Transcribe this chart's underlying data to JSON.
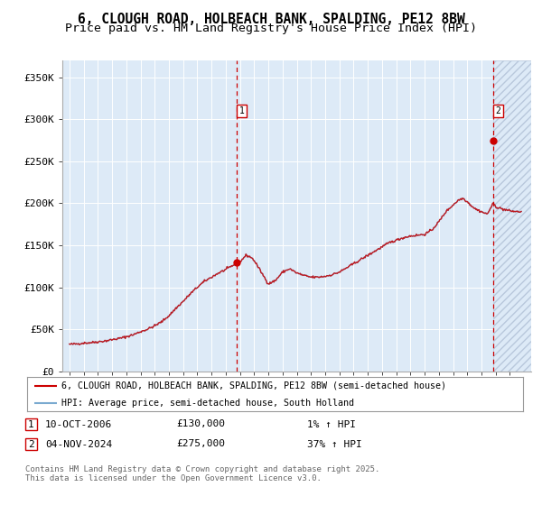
{
  "title_line1": "6, CLOUGH ROAD, HOLBEACH BANK, SPALDING, PE12 8BW",
  "title_line2": "Price paid vs. HM Land Registry's House Price Index (HPI)",
  "legend_line1": "6, CLOUGH ROAD, HOLBEACH BANK, SPALDING, PE12 8BW (semi-detached house)",
  "legend_line2": "HPI: Average price, semi-detached house, South Holland",
  "annotation1_date": "10-OCT-2006",
  "annotation1_price": "£130,000",
  "annotation1_hpi": "1% ↑ HPI",
  "annotation2_date": "04-NOV-2024",
  "annotation2_price": "£275,000",
  "annotation2_hpi": "37% ↑ HPI",
  "footer": "Contains HM Land Registry data © Crown copyright and database right 2025.\nThis data is licensed under the Open Government Licence v3.0.",
  "ylim": [
    0,
    370000
  ],
  "yticks": [
    0,
    50000,
    100000,
    150000,
    200000,
    250000,
    300000,
    350000
  ],
  "ytick_labels": [
    "£0",
    "£50K",
    "£100K",
    "£150K",
    "£200K",
    "£250K",
    "£300K",
    "£350K"
  ],
  "xlim_start": 1994.5,
  "xlim_end": 2027.5,
  "hpi_color": "#7aaad0",
  "sale_color": "#cc0000",
  "bg_color": "#ddeaf7",
  "grid_color": "#ffffff",
  "sale1_year": 2006.79,
  "sale1_price": 130000,
  "sale2_year": 2024.84,
  "sale2_price": 275000,
  "title_fontsize": 10.5,
  "subtitle_fontsize": 9.5
}
